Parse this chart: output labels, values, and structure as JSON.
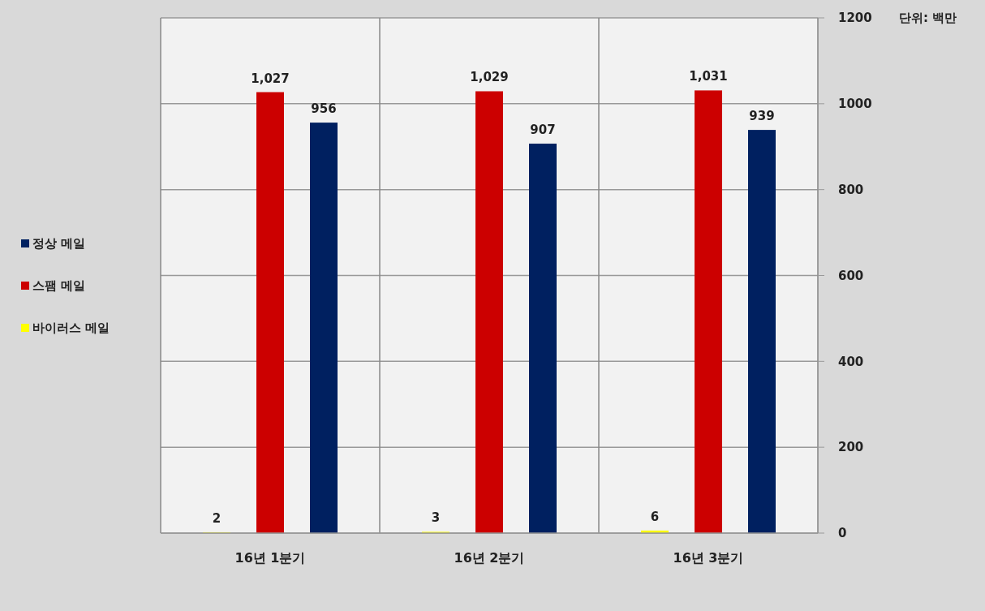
{
  "chart_data": {
    "type": "bar",
    "categories": [
      "16년 1분기",
      "16년 2분기",
      "16년 3분기"
    ],
    "series": [
      {
        "name": "바이러스 메일",
        "color": "#ffff00",
        "values": [
          2,
          3,
          6
        ],
        "value_labels": [
          "2",
          "3",
          "6"
        ]
      },
      {
        "name": "스팸 메일",
        "color": "#cc0000",
        "values": [
          1027,
          1029,
          1031
        ],
        "value_labels": [
          "1,027",
          "1,029",
          "1,031"
        ]
      },
      {
        "name": "정상 메일",
        "color": "#002060",
        "values": [
          956,
          907,
          939
        ],
        "value_labels": [
          "956",
          "907",
          "939"
        ]
      }
    ],
    "ylim": [
      0,
      1200
    ],
    "yticks": [
      0,
      200,
      400,
      600,
      800,
      1000,
      1200
    ],
    "grid": true,
    "legend": "left",
    "annotations": [
      "단위: 백만"
    ]
  }
}
